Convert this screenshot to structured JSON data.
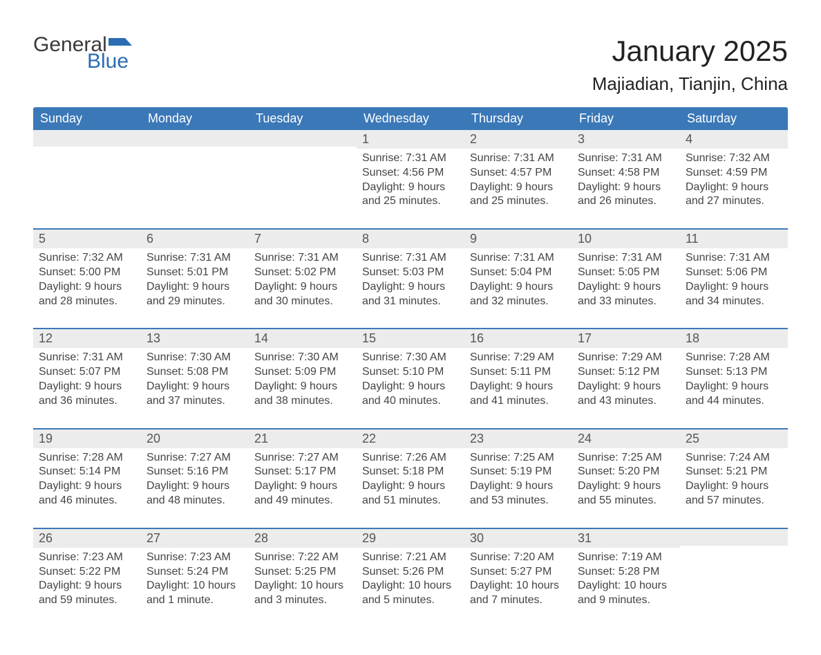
{
  "logo": {
    "word1": "General",
    "word2": "Blue"
  },
  "title": "January 2025",
  "location": "Majiadian, Tianjin, China",
  "colors": {
    "header_bg": "#3b78b8",
    "header_text": "#ffffff",
    "accent_blue": "#2a6db3",
    "row_border": "#3b78b8",
    "daynum_bg": "#ececec",
    "text_dark": "#333333"
  },
  "dayHeaders": [
    "Sunday",
    "Monday",
    "Tuesday",
    "Wednesday",
    "Thursday",
    "Friday",
    "Saturday"
  ],
  "weeks": [
    [
      {
        "empty": true
      },
      {
        "empty": true
      },
      {
        "empty": true
      },
      {
        "day": "1",
        "sunrise": "Sunrise: 7:31 AM",
        "sunset": "Sunset: 4:56 PM",
        "daylight1": "Daylight: 9 hours",
        "daylight2": "and 25 minutes."
      },
      {
        "day": "2",
        "sunrise": "Sunrise: 7:31 AM",
        "sunset": "Sunset: 4:57 PM",
        "daylight1": "Daylight: 9 hours",
        "daylight2": "and 25 minutes."
      },
      {
        "day": "3",
        "sunrise": "Sunrise: 7:31 AM",
        "sunset": "Sunset: 4:58 PM",
        "daylight1": "Daylight: 9 hours",
        "daylight2": "and 26 minutes."
      },
      {
        "day": "4",
        "sunrise": "Sunrise: 7:32 AM",
        "sunset": "Sunset: 4:59 PM",
        "daylight1": "Daylight: 9 hours",
        "daylight2": "and 27 minutes."
      }
    ],
    [
      {
        "day": "5",
        "sunrise": "Sunrise: 7:32 AM",
        "sunset": "Sunset: 5:00 PM",
        "daylight1": "Daylight: 9 hours",
        "daylight2": "and 28 minutes."
      },
      {
        "day": "6",
        "sunrise": "Sunrise: 7:31 AM",
        "sunset": "Sunset: 5:01 PM",
        "daylight1": "Daylight: 9 hours",
        "daylight2": "and 29 minutes."
      },
      {
        "day": "7",
        "sunrise": "Sunrise: 7:31 AM",
        "sunset": "Sunset: 5:02 PM",
        "daylight1": "Daylight: 9 hours",
        "daylight2": "and 30 minutes."
      },
      {
        "day": "8",
        "sunrise": "Sunrise: 7:31 AM",
        "sunset": "Sunset: 5:03 PM",
        "daylight1": "Daylight: 9 hours",
        "daylight2": "and 31 minutes."
      },
      {
        "day": "9",
        "sunrise": "Sunrise: 7:31 AM",
        "sunset": "Sunset: 5:04 PM",
        "daylight1": "Daylight: 9 hours",
        "daylight2": "and 32 minutes."
      },
      {
        "day": "10",
        "sunrise": "Sunrise: 7:31 AM",
        "sunset": "Sunset: 5:05 PM",
        "daylight1": "Daylight: 9 hours",
        "daylight2": "and 33 minutes."
      },
      {
        "day": "11",
        "sunrise": "Sunrise: 7:31 AM",
        "sunset": "Sunset: 5:06 PM",
        "daylight1": "Daylight: 9 hours",
        "daylight2": "and 34 minutes."
      }
    ],
    [
      {
        "day": "12",
        "sunrise": "Sunrise: 7:31 AM",
        "sunset": "Sunset: 5:07 PM",
        "daylight1": "Daylight: 9 hours",
        "daylight2": "and 36 minutes."
      },
      {
        "day": "13",
        "sunrise": "Sunrise: 7:30 AM",
        "sunset": "Sunset: 5:08 PM",
        "daylight1": "Daylight: 9 hours",
        "daylight2": "and 37 minutes."
      },
      {
        "day": "14",
        "sunrise": "Sunrise: 7:30 AM",
        "sunset": "Sunset: 5:09 PM",
        "daylight1": "Daylight: 9 hours",
        "daylight2": "and 38 minutes."
      },
      {
        "day": "15",
        "sunrise": "Sunrise: 7:30 AM",
        "sunset": "Sunset: 5:10 PM",
        "daylight1": "Daylight: 9 hours",
        "daylight2": "and 40 minutes."
      },
      {
        "day": "16",
        "sunrise": "Sunrise: 7:29 AM",
        "sunset": "Sunset: 5:11 PM",
        "daylight1": "Daylight: 9 hours",
        "daylight2": "and 41 minutes."
      },
      {
        "day": "17",
        "sunrise": "Sunrise: 7:29 AM",
        "sunset": "Sunset: 5:12 PM",
        "daylight1": "Daylight: 9 hours",
        "daylight2": "and 43 minutes."
      },
      {
        "day": "18",
        "sunrise": "Sunrise: 7:28 AM",
        "sunset": "Sunset: 5:13 PM",
        "daylight1": "Daylight: 9 hours",
        "daylight2": "and 44 minutes."
      }
    ],
    [
      {
        "day": "19",
        "sunrise": "Sunrise: 7:28 AM",
        "sunset": "Sunset: 5:14 PM",
        "daylight1": "Daylight: 9 hours",
        "daylight2": "and 46 minutes."
      },
      {
        "day": "20",
        "sunrise": "Sunrise: 7:27 AM",
        "sunset": "Sunset: 5:16 PM",
        "daylight1": "Daylight: 9 hours",
        "daylight2": "and 48 minutes."
      },
      {
        "day": "21",
        "sunrise": "Sunrise: 7:27 AM",
        "sunset": "Sunset: 5:17 PM",
        "daylight1": "Daylight: 9 hours",
        "daylight2": "and 49 minutes."
      },
      {
        "day": "22",
        "sunrise": "Sunrise: 7:26 AM",
        "sunset": "Sunset: 5:18 PM",
        "daylight1": "Daylight: 9 hours",
        "daylight2": "and 51 minutes."
      },
      {
        "day": "23",
        "sunrise": "Sunrise: 7:25 AM",
        "sunset": "Sunset: 5:19 PM",
        "daylight1": "Daylight: 9 hours",
        "daylight2": "and 53 minutes."
      },
      {
        "day": "24",
        "sunrise": "Sunrise: 7:25 AM",
        "sunset": "Sunset: 5:20 PM",
        "daylight1": "Daylight: 9 hours",
        "daylight2": "and 55 minutes."
      },
      {
        "day": "25",
        "sunrise": "Sunrise: 7:24 AM",
        "sunset": "Sunset: 5:21 PM",
        "daylight1": "Daylight: 9 hours",
        "daylight2": "and 57 minutes."
      }
    ],
    [
      {
        "day": "26",
        "sunrise": "Sunrise: 7:23 AM",
        "sunset": "Sunset: 5:22 PM",
        "daylight1": "Daylight: 9 hours",
        "daylight2": "and 59 minutes."
      },
      {
        "day": "27",
        "sunrise": "Sunrise: 7:23 AM",
        "sunset": "Sunset: 5:24 PM",
        "daylight1": "Daylight: 10 hours",
        "daylight2": "and 1 minute."
      },
      {
        "day": "28",
        "sunrise": "Sunrise: 7:22 AM",
        "sunset": "Sunset: 5:25 PM",
        "daylight1": "Daylight: 10 hours",
        "daylight2": "and 3 minutes."
      },
      {
        "day": "29",
        "sunrise": "Sunrise: 7:21 AM",
        "sunset": "Sunset: 5:26 PM",
        "daylight1": "Daylight: 10 hours",
        "daylight2": "and 5 minutes."
      },
      {
        "day": "30",
        "sunrise": "Sunrise: 7:20 AM",
        "sunset": "Sunset: 5:27 PM",
        "daylight1": "Daylight: 10 hours",
        "daylight2": "and 7 minutes."
      },
      {
        "day": "31",
        "sunrise": "Sunrise: 7:19 AM",
        "sunset": "Sunset: 5:28 PM",
        "daylight1": "Daylight: 10 hours",
        "daylight2": "and 9 minutes."
      },
      {
        "empty": true
      }
    ]
  ]
}
